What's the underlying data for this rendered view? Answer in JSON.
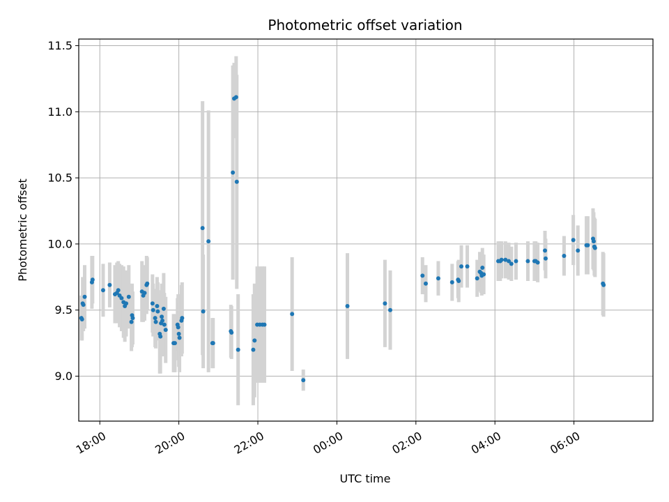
{
  "chart_data": {
    "type": "scatter",
    "title": "Photometric offset variation",
    "xlabel": "UTC time",
    "ylabel": "Photometric offset",
    "x_ticks": [
      "18:00",
      "20:00",
      "22:00",
      "00:00",
      "02:00",
      "04:00",
      "06:00"
    ],
    "y_ticks": [
      "9.0",
      "9.5",
      "10.0",
      "10.5",
      "11.0",
      "11.5"
    ],
    "xlim": [
      "17:28",
      "08:00"
    ],
    "ylim": [
      8.66,
      11.55
    ],
    "grid": true,
    "legend": "none",
    "colors": {
      "point": "#1f77b4",
      "errorbar": "#d3d3d3",
      "grid": "#b0b0b0"
    },
    "points": [
      {
        "x": "17:32",
        "y": 9.44,
        "err": 0.17
      },
      {
        "x": "17:33",
        "y": 9.43,
        "err": 0.16
      },
      {
        "x": "17:34",
        "y": 9.55,
        "err": 0.2
      },
      {
        "x": "17:35",
        "y": 9.54,
        "err": 0.2
      },
      {
        "x": "17:37",
        "y": 9.6,
        "err": 0.24
      },
      {
        "x": "17:48",
        "y": 9.71,
        "err": 0.2
      },
      {
        "x": "17:49",
        "y": 9.73,
        "err": 0.18
      },
      {
        "x": "18:05",
        "y": 9.65,
        "err": 0.2
      },
      {
        "x": "18:15",
        "y": 9.69,
        "err": 0.17
      },
      {
        "x": "18:23",
        "y": 9.62,
        "err": 0.22
      },
      {
        "x": "18:26",
        "y": 9.63,
        "err": 0.23
      },
      {
        "x": "18:28",
        "y": 9.65,
        "err": 0.22
      },
      {
        "x": "18:30",
        "y": 9.61,
        "err": 0.24
      },
      {
        "x": "18:33",
        "y": 9.59,
        "err": 0.25
      },
      {
        "x": "18:36",
        "y": 9.56,
        "err": 0.27
      },
      {
        "x": "18:38",
        "y": 9.53,
        "err": 0.27
      },
      {
        "x": "18:40",
        "y": 9.55,
        "err": 0.25
      },
      {
        "x": "18:44",
        "y": 9.6,
        "err": 0.24
      },
      {
        "x": "18:48",
        "y": 9.41,
        "err": 0.22
      },
      {
        "x": "18:49",
        "y": 9.46,
        "err": 0.24
      },
      {
        "x": "18:50",
        "y": 9.44,
        "err": 0.2
      },
      {
        "x": "19:04",
        "y": 9.64,
        "err": 0.23
      },
      {
        "x": "19:06",
        "y": 9.61,
        "err": 0.2
      },
      {
        "x": "19:08",
        "y": 9.63,
        "err": 0.21
      },
      {
        "x": "19:11",
        "y": 9.69,
        "err": 0.22
      },
      {
        "x": "19:12",
        "y": 9.7,
        "err": 0.2
      },
      {
        "x": "19:20",
        "y": 9.55,
        "err": 0.22
      },
      {
        "x": "19:21",
        "y": 9.5,
        "err": 0.2
      },
      {
        "x": "19:24",
        "y": 9.44,
        "err": 0.22
      },
      {
        "x": "19:25",
        "y": 9.41,
        "err": 0.2
      },
      {
        "x": "19:27",
        "y": 9.53,
        "err": 0.22
      },
      {
        "x": "19:28",
        "y": 9.49,
        "err": 0.22
      },
      {
        "x": "19:31",
        "y": 9.32,
        "err": 0.3
      },
      {
        "x": "19:32",
        "y": 9.3,
        "err": 0.28
      },
      {
        "x": "19:33",
        "y": 9.4,
        "err": 0.25
      },
      {
        "x": "19:34",
        "y": 9.45,
        "err": 0.25
      },
      {
        "x": "19:35",
        "y": 9.42,
        "err": 0.26
      },
      {
        "x": "19:37",
        "y": 9.51,
        "err": 0.27
      },
      {
        "x": "19:38",
        "y": 9.39,
        "err": 0.24
      },
      {
        "x": "19:40",
        "y": 9.35,
        "err": 0.25
      },
      {
        "x": "19:52",
        "y": 9.25,
        "err": 0.22
      },
      {
        "x": "19:54",
        "y": 9.25,
        "err": 0.22
      },
      {
        "x": "19:58",
        "y": 9.39,
        "err": 0.2
      },
      {
        "x": "19:59",
        "y": 9.37,
        "err": 0.25
      },
      {
        "x": "20:00",
        "y": 9.32,
        "err": 0.25
      },
      {
        "x": "20:01",
        "y": 9.29,
        "err": 0.26
      },
      {
        "x": "20:04",
        "y": 9.42,
        "err": 0.27
      },
      {
        "x": "20:05",
        "y": 9.44,
        "err": 0.27
      },
      {
        "x": "20:36",
        "y": 10.12,
        "err": 0.96
      },
      {
        "x": "20:37",
        "y": 9.49,
        "err": 0.43
      },
      {
        "x": "20:45",
        "y": 10.02,
        "err": 0.99
      },
      {
        "x": "20:51",
        "y": 9.25,
        "err": 0.19
      },
      {
        "x": "20:52",
        "y": 9.25,
        "err": 0.19
      },
      {
        "x": "21:19",
        "y": 9.34,
        "err": 0.2
      },
      {
        "x": "21:20",
        "y": 9.33,
        "err": 0.2
      },
      {
        "x": "21:22",
        "y": 10.54,
        "err": 0.81
      },
      {
        "x": "21:24",
        "y": 11.1,
        "err": 0.27
      },
      {
        "x": "21:27",
        "y": 11.11,
        "err": 0.31
      },
      {
        "x": "21:28",
        "y": 10.47,
        "err": 0.81
      },
      {
        "x": "21:30",
        "y": 9.2,
        "err": 0.42
      },
      {
        "x": "21:53",
        "y": 9.2,
        "err": 0.42
      },
      {
        "x": "21:55",
        "y": 9.27,
        "err": 0.43
      },
      {
        "x": "21:59",
        "y": 9.39,
        "err": 0.44
      },
      {
        "x": "22:03",
        "y": 9.39,
        "err": 0.44
      },
      {
        "x": "22:07",
        "y": 9.39,
        "err": 0.44
      },
      {
        "x": "22:10",
        "y": 9.39,
        "err": 0.44
      },
      {
        "x": "22:52",
        "y": 9.47,
        "err": 0.43
      },
      {
        "x": "23:09",
        "y": 8.97,
        "err": 0.08
      },
      {
        "x": "00:16",
        "y": 9.53,
        "err": 0.4
      },
      {
        "x": "01:13",
        "y": 9.55,
        "err": 0.33
      },
      {
        "x": "01:21",
        "y": 9.5,
        "err": 0.3
      },
      {
        "x": "02:10",
        "y": 9.76,
        "err": 0.14
      },
      {
        "x": "02:15",
        "y": 9.7,
        "err": 0.14
      },
      {
        "x": "02:34",
        "y": 9.74,
        "err": 0.13
      },
      {
        "x": "02:55",
        "y": 9.71,
        "err": 0.14
      },
      {
        "x": "03:04",
        "y": 9.73,
        "err": 0.14
      },
      {
        "x": "03:05",
        "y": 9.72,
        "err": 0.16
      },
      {
        "x": "03:09",
        "y": 9.83,
        "err": 0.16
      },
      {
        "x": "03:18",
        "y": 9.83,
        "err": 0.16
      },
      {
        "x": "03:33",
        "y": 9.74,
        "err": 0.14
      },
      {
        "x": "03:37",
        "y": 9.79,
        "err": 0.15
      },
      {
        "x": "03:39",
        "y": 9.78,
        "err": 0.15
      },
      {
        "x": "03:40",
        "y": 9.76,
        "err": 0.15
      },
      {
        "x": "03:41",
        "y": 9.82,
        "err": 0.15
      },
      {
        "x": "03:43",
        "y": 9.77,
        "err": 0.15
      },
      {
        "x": "04:05",
        "y": 9.87,
        "err": 0.15
      },
      {
        "x": "04:08",
        "y": 9.87,
        "err": 0.15
      },
      {
        "x": "04:10",
        "y": 9.88,
        "err": 0.14
      },
      {
        "x": "04:16",
        "y": 9.88,
        "err": 0.14
      },
      {
        "x": "04:21",
        "y": 9.87,
        "err": 0.14
      },
      {
        "x": "04:25",
        "y": 9.85,
        "err": 0.13
      },
      {
        "x": "04:32",
        "y": 9.87,
        "err": 0.14
      },
      {
        "x": "04:50",
        "y": 9.87,
        "err": 0.15
      },
      {
        "x": "05:00",
        "y": 9.87,
        "err": 0.15
      },
      {
        "x": "05:02",
        "y": 9.87,
        "err": 0.15
      },
      {
        "x": "05:05",
        "y": 9.86,
        "err": 0.15
      },
      {
        "x": "05:16",
        "y": 9.95,
        "err": 0.15
      },
      {
        "x": "05:17",
        "y": 9.89,
        "err": 0.15
      },
      {
        "x": "05:45",
        "y": 9.91,
        "err": 0.15
      },
      {
        "x": "05:59",
        "y": 10.03,
        "err": 0.19
      },
      {
        "x": "06:06",
        "y": 9.95,
        "err": 0.19
      },
      {
        "x": "06:19",
        "y": 9.99,
        "err": 0.22
      },
      {
        "x": "06:21",
        "y": 9.99,
        "err": 0.22
      },
      {
        "x": "06:29",
        "y": 10.04,
        "err": 0.23
      },
      {
        "x": "06:30",
        "y": 10.02,
        "err": 0.22
      },
      {
        "x": "06:31",
        "y": 9.98,
        "err": 0.22
      },
      {
        "x": "06:32",
        "y": 9.97,
        "err": 0.22
      },
      {
        "x": "06:44",
        "y": 9.7,
        "err": 0.24
      },
      {
        "x": "06:45",
        "y": 9.69,
        "err": 0.24
      }
    ]
  }
}
